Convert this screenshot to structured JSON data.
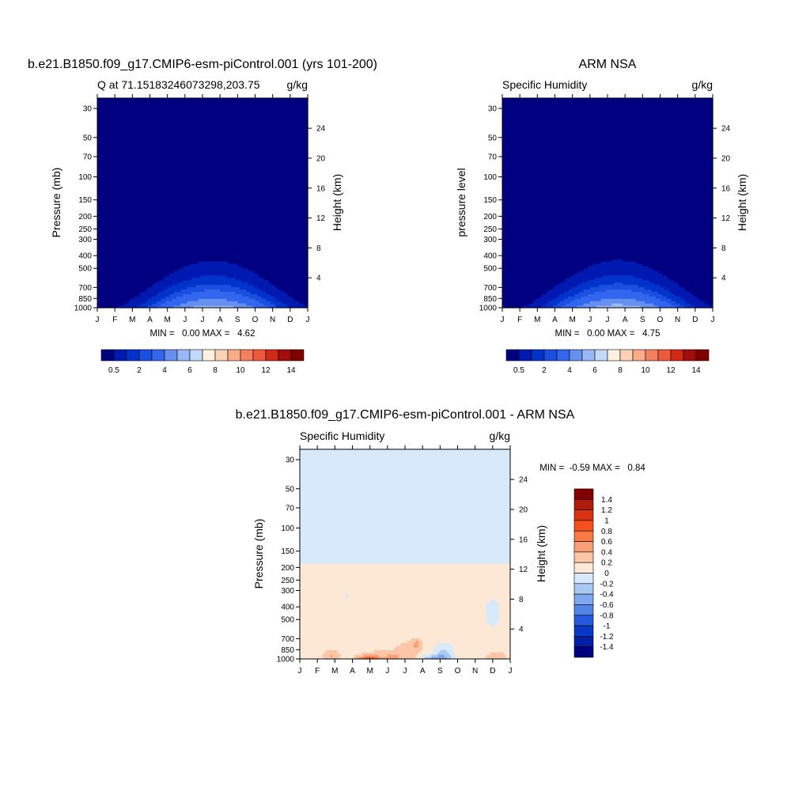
{
  "chart_data": [
    {
      "type": "heatmap",
      "title": "b.e21.B1850.f09_g17.CMIP6-esm-piControl.001 (yrs 101-200)",
      "left_subtitle": "Q at 71.15183246073298,203.75",
      "right_subtitle": "g/kg",
      "ylabel": "Pressure (mb)",
      "ylabel_right": "Height (km)",
      "x_ticks": [
        "J",
        "F",
        "M",
        "A",
        "M",
        "J",
        "J",
        "A",
        "S",
        "O",
        "N",
        "D",
        "J"
      ],
      "y_ticks": [
        "30",
        "50",
        "70",
        "100",
        "150",
        "200",
        "250",
        "300",
        "400",
        "500",
        "700",
        "850",
        "1000"
      ],
      "y_tick_values": [
        30,
        50,
        70,
        100,
        150,
        200,
        250,
        300,
        400,
        500,
        700,
        850,
        1000
      ],
      "right_ticks": [
        "4",
        "8",
        "12",
        "16",
        "20",
        "24"
      ],
      "right_tick_values": [
        4,
        8,
        12,
        16,
        20,
        24
      ],
      "ylim": [
        1000,
        25
      ],
      "y_scale": "log",
      "stats": "MIN =   0.00 MAX =   4.62",
      "colorbar_labels": [
        "0.5",
        "2",
        "4",
        "6",
        "8",
        "10",
        "12",
        "14"
      ],
      "min": 0.0,
      "max": 4.62,
      "peak_month": 6.6
    },
    {
      "type": "heatmap",
      "title": "ARM NSA",
      "left_subtitle": "Specific Humidity",
      "right_subtitle": "g/kg",
      "ylabel": "pressure level",
      "ylabel_right": "Height (km)",
      "x_ticks": [
        "J",
        "F",
        "M",
        "A",
        "M",
        "J",
        "J",
        "A",
        "S",
        "O",
        "N",
        "D",
        "J"
      ],
      "y_ticks": [
        "30",
        "50",
        "70",
        "100",
        "150",
        "200",
        "250",
        "300",
        "400",
        "500",
        "700",
        "850",
        "1000"
      ],
      "y_tick_values": [
        30,
        50,
        70,
        100,
        150,
        200,
        250,
        300,
        400,
        500,
        700,
        850,
        1000
      ],
      "right_ticks": [
        "4",
        "8",
        "12",
        "16",
        "20",
        "24"
      ],
      "right_tick_values": [
        4,
        8,
        12,
        16,
        20,
        24
      ],
      "ylim": [
        1000,
        25
      ],
      "y_scale": "log",
      "stats": "MIN =   0.00 MAX =   4.75",
      "colorbar_labels": [
        "0.5",
        "2",
        "4",
        "6",
        "8",
        "10",
        "12",
        "14"
      ],
      "min": 0.0,
      "max": 4.75,
      "peak_month": 6.6
    },
    {
      "type": "heatmap",
      "title": "b.e21.B1850.f09_g17.CMIP6-esm-piControl.001 - ARM NSA",
      "left_subtitle": "Specific Humidity",
      "right_subtitle": "g/kg",
      "ylabel": "Pressure (mb)",
      "ylabel_right": "Height (km)",
      "x_ticks": [
        "J",
        "F",
        "M",
        "A",
        "M",
        "J",
        "J",
        "A",
        "S",
        "O",
        "N",
        "D",
        "J"
      ],
      "y_ticks": [
        "30",
        "50",
        "70",
        "100",
        "150",
        "200",
        "250",
        "300",
        "400",
        "500",
        "700",
        "850",
        "1000"
      ],
      "y_tick_values": [
        30,
        50,
        70,
        100,
        150,
        200,
        250,
        300,
        400,
        500,
        700,
        850,
        1000
      ],
      "right_ticks": [
        "4",
        "8",
        "12",
        "16",
        "20",
        "24"
      ],
      "right_tick_values": [
        4,
        8,
        12,
        16,
        20,
        24
      ],
      "ylim": [
        1000,
        25
      ],
      "y_scale": "log",
      "stats": "MIN =  -0.59 MAX =   0.84",
      "colorbar_labels": [
        "1.4",
        "1.2",
        "1",
        "0.8",
        "0.6",
        "0.4",
        "0.2",
        "0",
        "-0.2",
        "-0.4",
        "-0.6",
        "-0.8",
        "-1",
        "-1.2",
        "-1.4"
      ],
      "min": -0.59,
      "max": 0.84
    }
  ],
  "colors": {
    "seq": [
      "#000080",
      "#0019b0",
      "#0033cc",
      "#1a4fe0",
      "#3366ee",
      "#6690f0",
      "#99b8f5",
      "#c4d8fa",
      "#fff0e0",
      "#fcd1b4",
      "#f9ab8a",
      "#f58060",
      "#f05a3c",
      "#d22a16",
      "#a30d0d",
      "#800000"
    ],
    "div": [
      "#800000",
      "#b01c0c",
      "#d83212",
      "#f55020",
      "#f77a45",
      "#f99f78",
      "#fbc6a7",
      "#fde8d6",
      "#d7e9fb",
      "#aac8f4",
      "#7fa7ee",
      "#5283e8",
      "#2659dc",
      "#0a38c6",
      "#001fa2",
      "#000080"
    ],
    "frame": "#000000",
    "white": "#ffffff"
  }
}
